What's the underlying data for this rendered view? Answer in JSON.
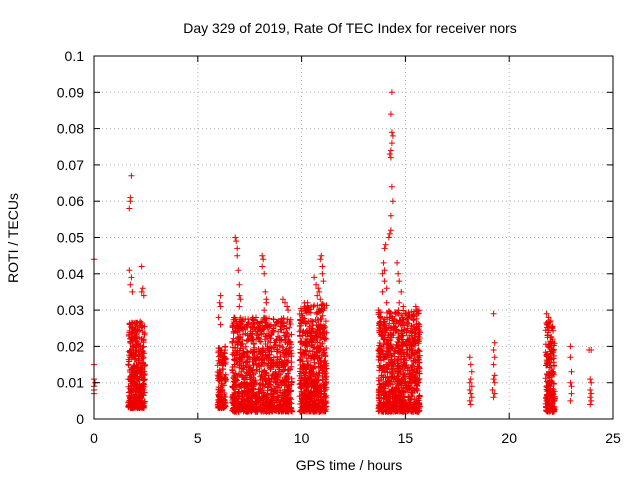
{
  "chart_data": {
    "type": "scatter",
    "title": "Day 329 of 2019, Rate Of TEC Index for receiver nors",
    "xlabel": "GPS time / hours",
    "ylabel": "ROTI / TECUs",
    "xlim": [
      0,
      25
    ],
    "ylim": [
      0,
      0.1
    ],
    "x_ticks": [
      0,
      5,
      10,
      15,
      20,
      25
    ],
    "x_tick_labels": [
      "0",
      "5",
      "10",
      "15",
      "20",
      "25"
    ],
    "y_ticks": [
      0,
      0.01,
      0.02,
      0.03,
      0.04,
      0.05,
      0.06,
      0.07,
      0.08,
      0.09,
      0.1
    ],
    "y_tick_labels": [
      "0",
      "0.01",
      "0.02",
      "0.03",
      "0.04",
      "0.05",
      "0.06",
      "0.07",
      "0.08",
      "0.09",
      "0.1"
    ],
    "grid": true,
    "marker": "+",
    "marker_color": "#ee0000",
    "series": [
      {
        "name": "ROTI",
        "points": [
          [
            0.0,
            0.044
          ],
          [
            0.0,
            0.015
          ],
          [
            0.0,
            0.011
          ],
          [
            0.0,
            0.009
          ],
          [
            0.0,
            0.008
          ],
          [
            0.0,
            0.007
          ],
          [
            0.05,
            0.01
          ],
          [
            1.7,
            0.058
          ],
          [
            1.75,
            0.06
          ],
          [
            1.75,
            0.061
          ],
          [
            1.8,
            0.067
          ],
          [
            1.7,
            0.041
          ],
          [
            1.8,
            0.039
          ],
          [
            1.75,
            0.037
          ],
          [
            1.85,
            0.035
          ],
          [
            2.3,
            0.042
          ],
          [
            2.35,
            0.036
          ],
          [
            2.3,
            0.035
          ],
          [
            2.4,
            0.034
          ],
          [
            6.1,
            0.034
          ],
          [
            6.05,
            0.032
          ],
          [
            6.1,
            0.031
          ],
          [
            6.0,
            0.028
          ],
          [
            6.1,
            0.026
          ],
          [
            6.8,
            0.05
          ],
          [
            6.85,
            0.049
          ],
          [
            6.9,
            0.047
          ],
          [
            6.9,
            0.045
          ],
          [
            6.95,
            0.041
          ],
          [
            7.0,
            0.037
          ],
          [
            7.0,
            0.034
          ],
          [
            7.05,
            0.033
          ],
          [
            7.0,
            0.031
          ],
          [
            8.1,
            0.045
          ],
          [
            8.15,
            0.044
          ],
          [
            8.1,
            0.042
          ],
          [
            8.2,
            0.04
          ],
          [
            8.25,
            0.035
          ],
          [
            8.3,
            0.033
          ],
          [
            8.3,
            0.032
          ],
          [
            8.2,
            0.03
          ],
          [
            9.1,
            0.033
          ],
          [
            9.2,
            0.032
          ],
          [
            9.3,
            0.031
          ],
          [
            9.35,
            0.03
          ],
          [
            10.0,
            0.029
          ],
          [
            10.05,
            0.028
          ],
          [
            10.1,
            0.027
          ],
          [
            10.05,
            0.023
          ],
          [
            10.6,
            0.039
          ],
          [
            10.7,
            0.037
          ],
          [
            10.85,
            0.035
          ],
          [
            10.9,
            0.044
          ],
          [
            10.95,
            0.045
          ],
          [
            11.0,
            0.042
          ],
          [
            11.0,
            0.04
          ],
          [
            11.05,
            0.038
          ],
          [
            10.8,
            0.036
          ],
          [
            10.75,
            0.034
          ],
          [
            10.9,
            0.033
          ],
          [
            13.7,
            0.03
          ],
          [
            13.8,
            0.028
          ],
          [
            13.9,
            0.035
          ],
          [
            13.9,
            0.04
          ],
          [
            13.95,
            0.043
          ],
          [
            14.0,
            0.047
          ],
          [
            14.05,
            0.048
          ],
          [
            14.0,
            0.041
          ],
          [
            14.0,
            0.038
          ],
          [
            14.1,
            0.036
          ],
          [
            14.1,
            0.032
          ],
          [
            14.2,
            0.05
          ],
          [
            14.25,
            0.051
          ],
          [
            14.3,
            0.052
          ],
          [
            14.3,
            0.056
          ],
          [
            14.4,
            0.06
          ],
          [
            14.35,
            0.064
          ],
          [
            14.25,
            0.073
          ],
          [
            14.3,
            0.074
          ],
          [
            14.35,
            0.076
          ],
          [
            14.3,
            0.072
          ],
          [
            14.4,
            0.078
          ],
          [
            14.35,
            0.079
          ],
          [
            14.3,
            0.084
          ],
          [
            14.35,
            0.09
          ],
          [
            14.6,
            0.043
          ],
          [
            14.65,
            0.04
          ],
          [
            14.7,
            0.038
          ],
          [
            14.8,
            0.035
          ],
          [
            14.7,
            0.032
          ],
          [
            14.9,
            0.031
          ],
          [
            14.85,
            0.028
          ],
          [
            15.5,
            0.031
          ],
          [
            15.55,
            0.03
          ],
          [
            15.6,
            0.029
          ],
          [
            18.1,
            0.017
          ],
          [
            18.15,
            0.015
          ],
          [
            18.2,
            0.013
          ],
          [
            18.15,
            0.011
          ],
          [
            18.1,
            0.01
          ],
          [
            18.2,
            0.009
          ],
          [
            18.1,
            0.008
          ],
          [
            18.15,
            0.007
          ],
          [
            18.2,
            0.006
          ],
          [
            18.1,
            0.005
          ],
          [
            18.15,
            0.004
          ],
          [
            19.25,
            0.029
          ],
          [
            19.3,
            0.021
          ],
          [
            19.25,
            0.019
          ],
          [
            19.3,
            0.017
          ],
          [
            19.25,
            0.015
          ],
          [
            19.3,
            0.012
          ],
          [
            19.25,
            0.011
          ],
          [
            19.3,
            0.01
          ],
          [
            19.2,
            0.008
          ],
          [
            19.3,
            0.007
          ],
          [
            19.25,
            0.006
          ],
          [
            21.8,
            0.029
          ],
          [
            21.9,
            0.028
          ],
          [
            22.0,
            0.027
          ],
          [
            22.05,
            0.025
          ],
          [
            21.85,
            0.023
          ],
          [
            22.0,
            0.021
          ],
          [
            22.95,
            0.02
          ],
          [
            22.95,
            0.017
          ],
          [
            23.0,
            0.013
          ],
          [
            22.95,
            0.01
          ],
          [
            23.0,
            0.009
          ],
          [
            23.0,
            0.007
          ],
          [
            22.95,
            0.005
          ],
          [
            23.85,
            0.019
          ],
          [
            23.95,
            0.019
          ],
          [
            23.9,
            0.011
          ],
          [
            23.95,
            0.01
          ],
          [
            23.9,
            0.008
          ],
          [
            23.95,
            0.007
          ],
          [
            23.9,
            0.006
          ],
          [
            23.95,
            0.005
          ],
          [
            23.9,
            0.004
          ]
        ],
        "dense_clusters": [
          {
            "x_range": [
              1.65,
              2.45
            ],
            "y_range": [
              0.003,
              0.027
            ],
            "count": 380
          },
          {
            "x_range": [
              5.95,
              6.35
            ],
            "y_range": [
              0.003,
              0.02
            ],
            "count": 140
          },
          {
            "x_range": [
              6.65,
              9.55
            ],
            "y_range": [
              0.002,
              0.028
            ],
            "count": 1100
          },
          {
            "x_range": [
              9.9,
              11.2
            ],
            "y_range": [
              0.002,
              0.032
            ],
            "count": 620
          },
          {
            "x_range": [
              13.7,
              15.7
            ],
            "y_range": [
              0.002,
              0.03
            ],
            "count": 900
          },
          {
            "x_range": [
              21.75,
              22.2
            ],
            "y_range": [
              0.002,
              0.027
            ],
            "count": 200
          }
        ]
      }
    ]
  }
}
